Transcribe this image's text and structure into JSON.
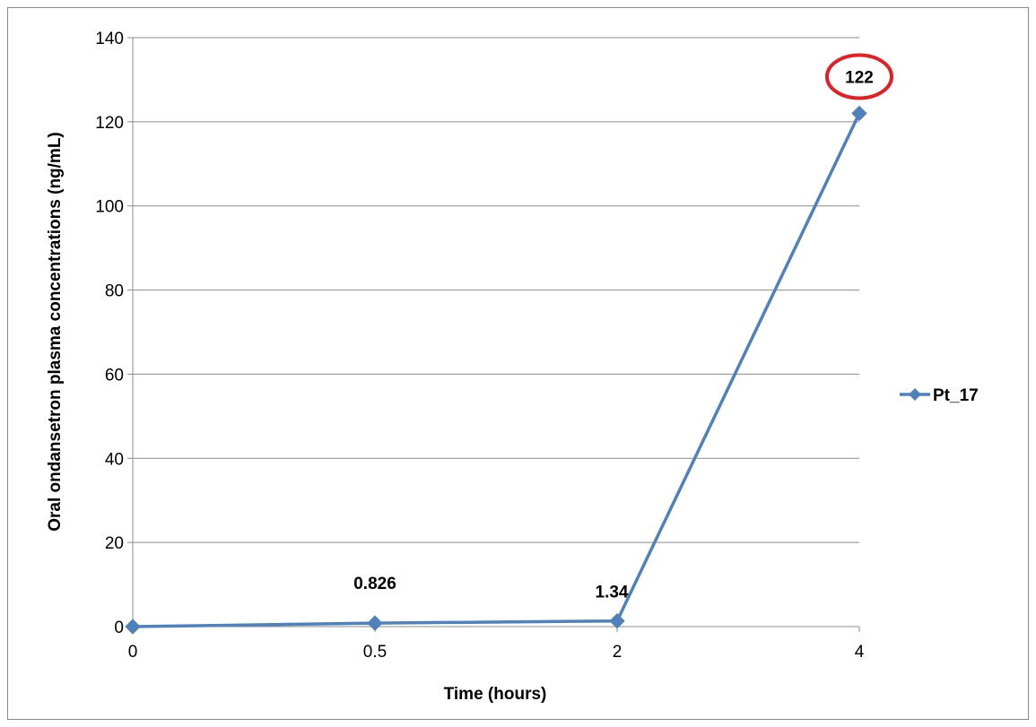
{
  "chart_data": {
    "type": "line",
    "categories": [
      "0",
      "0.5",
      "2",
      "4"
    ],
    "series": [
      {
        "name": "Pt_17",
        "values": [
          0,
          0.826,
          1.34,
          122
        ],
        "labels": [
          "",
          "0.826",
          "1.34",
          "122"
        ]
      }
    ],
    "xlabel": "Time (hours)",
    "ylabel": "Oral ondansetron plasma concentrations (ng/mL)",
    "ylim": [
      0,
      140
    ],
    "yticks": [
      0,
      20,
      40,
      60,
      80,
      100,
      120,
      140
    ],
    "grid": true,
    "legend_position": "right",
    "highlighted_label": "122",
    "colors": {
      "series": "#4f81bd",
      "highlight": "#e31e24",
      "grid": "#8c8c8c",
      "axis": "#8c8c8c"
    }
  }
}
